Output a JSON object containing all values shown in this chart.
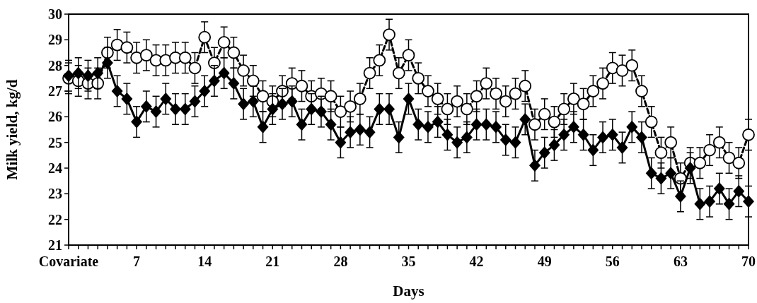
{
  "chart_data": {
    "type": "line",
    "xlabel": "Days",
    "ylabel": "Milk yield, kg/d",
    "x": [
      0,
      1,
      2,
      3,
      4,
      5,
      6,
      7,
      8,
      9,
      10,
      11,
      12,
      13,
      14,
      15,
      16,
      17,
      18,
      19,
      20,
      21,
      22,
      23,
      24,
      25,
      26,
      27,
      28,
      29,
      30,
      31,
      32,
      33,
      34,
      35,
      36,
      37,
      38,
      39,
      40,
      41,
      42,
      43,
      44,
      45,
      46,
      47,
      48,
      49,
      50,
      51,
      52,
      53,
      54,
      55,
      56,
      57,
      58,
      59,
      60,
      61,
      62,
      63,
      64,
      65,
      66,
      67,
      68,
      69,
      70
    ],
    "series": [
      {
        "color": "#000000",
        "marker": "circle",
        "line_style": "dashed",
        "values": [
          27.5,
          27.4,
          27.3,
          27.3,
          28.5,
          28.8,
          28.7,
          28.3,
          28.4,
          28.2,
          28.2,
          28.3,
          28.3,
          27.9,
          29.1,
          28.1,
          28.9,
          28.5,
          27.8,
          27.4,
          26.8,
          26.6,
          27.0,
          27.3,
          27.2,
          26.8,
          26.9,
          26.8,
          26.2,
          26.4,
          26.7,
          27.7,
          28.2,
          29.2,
          27.7,
          28.4,
          27.5,
          27.0,
          26.7,
          26.3,
          26.6,
          26.3,
          26.8,
          27.3,
          26.9,
          26.6,
          26.9,
          27.2,
          25.7,
          26.1,
          25.8,
          26.3,
          26.7,
          26.5,
          27.0,
          27.3,
          27.9,
          27.8,
          28.0,
          27.0,
          25.8,
          24.6,
          25.0,
          23.6,
          24.2,
          24.2,
          24.7,
          25.0,
          24.4,
          24.2,
          25.3
        ],
        "errors": [
          0.6,
          0.6,
          0.6,
          0.6,
          0.6,
          0.6,
          0.6,
          0.6,
          0.6,
          0.6,
          0.6,
          0.6,
          0.6,
          0.6,
          0.6,
          0.6,
          0.6,
          0.6,
          0.6,
          0.6,
          0.6,
          0.6,
          0.6,
          0.6,
          0.6,
          0.6,
          0.6,
          0.6,
          0.6,
          0.6,
          0.6,
          0.6,
          0.6,
          0.6,
          0.6,
          0.6,
          0.6,
          0.6,
          0.6,
          0.6,
          0.6,
          0.6,
          0.6,
          0.6,
          0.6,
          0.6,
          0.6,
          0.6,
          0.6,
          0.6,
          0.6,
          0.6,
          0.6,
          0.6,
          0.6,
          0.6,
          0.6,
          0.6,
          0.6,
          0.6,
          0.6,
          0.6,
          0.6,
          0.6,
          0.6,
          0.6,
          0.6,
          0.6,
          0.6,
          0.6,
          0.6
        ]
      },
      {
        "color": "#000000",
        "marker": "diamond",
        "line_style": "solid",
        "values": [
          27.6,
          27.7,
          27.6,
          27.7,
          28.1,
          27.0,
          26.7,
          25.8,
          26.4,
          26.2,
          26.7,
          26.3,
          26.3,
          26.6,
          27.0,
          27.4,
          27.7,
          27.3,
          26.5,
          26.6,
          25.6,
          26.3,
          26.5,
          26.6,
          25.7,
          26.3,
          26.2,
          25.7,
          25.0,
          25.4,
          25.5,
          25.4,
          26.3,
          26.3,
          25.2,
          26.7,
          25.7,
          25.6,
          25.8,
          25.3,
          25.0,
          25.2,
          25.7,
          25.7,
          25.6,
          25.1,
          25.0,
          25.9,
          24.1,
          24.6,
          24.9,
          25.3,
          25.6,
          25.3,
          24.7,
          25.2,
          25.3,
          24.8,
          25.6,
          25.2,
          23.8,
          23.6,
          23.8,
          22.9,
          24.0,
          22.6,
          22.7,
          23.2,
          22.6,
          23.1,
          22.7
        ],
        "errors": [
          0.6,
          0.6,
          0.6,
          0.6,
          0.6,
          0.6,
          0.6,
          0.6,
          0.6,
          0.6,
          0.6,
          0.6,
          0.6,
          0.6,
          0.6,
          0.6,
          0.6,
          0.6,
          0.6,
          0.6,
          0.6,
          0.6,
          0.6,
          0.6,
          0.6,
          0.6,
          0.6,
          0.6,
          0.6,
          0.6,
          0.6,
          0.6,
          0.6,
          0.6,
          0.6,
          0.6,
          0.6,
          0.6,
          0.6,
          0.6,
          0.6,
          0.6,
          0.6,
          0.6,
          0.6,
          0.6,
          0.6,
          0.6,
          0.6,
          0.6,
          0.6,
          0.6,
          0.6,
          0.6,
          0.6,
          0.6,
          0.6,
          0.6,
          0.6,
          0.6,
          0.6,
          0.6,
          0.6,
          0.6,
          0.6,
          0.6,
          0.6,
          0.6,
          0.6,
          0.6,
          0.6
        ]
      }
    ],
    "xlim": [
      0,
      70
    ],
    "xticks": [
      {
        "value": 0,
        "label": "Covariate"
      },
      {
        "value": 1,
        "label": null
      },
      {
        "value": 2,
        "label": null
      },
      {
        "value": 3,
        "label": null
      },
      {
        "value": 4,
        "label": null
      },
      {
        "value": 5,
        "label": null
      },
      {
        "value": 6,
        "label": null
      },
      7,
      {
        "value": 8,
        "label": null
      },
      {
        "value": 9,
        "label": null
      },
      {
        "value": 10,
        "label": null
      },
      {
        "value": 11,
        "label": null
      },
      {
        "value": 12,
        "label": null
      },
      {
        "value": 13,
        "label": null
      },
      14,
      {
        "value": 15,
        "label": null
      },
      {
        "value": 16,
        "label": null
      },
      {
        "value": 17,
        "label": null
      },
      {
        "value": 18,
        "label": null
      },
      {
        "value": 19,
        "label": null
      },
      {
        "value": 20,
        "label": null
      },
      21,
      {
        "value": 22,
        "label": null
      },
      {
        "value": 23,
        "label": null
      },
      {
        "value": 24,
        "label": null
      },
      {
        "value": 25,
        "label": null
      },
      {
        "value": 26,
        "label": null
      },
      {
        "value": 27,
        "label": null
      },
      28,
      {
        "value": 29,
        "label": null
      },
      {
        "value": 30,
        "label": null
      },
      {
        "value": 31,
        "label": null
      },
      {
        "value": 32,
        "label": null
      },
      {
        "value": 33,
        "label": null
      },
      {
        "value": 34,
        "label": null
      },
      35,
      {
        "value": 36,
        "label": null
      },
      {
        "value": 37,
        "label": null
      },
      {
        "value": 38,
        "label": null
      },
      {
        "value": 39,
        "label": null
      },
      {
        "value": 40,
        "label": null
      },
      {
        "value": 41,
        "label": null
      },
      42,
      {
        "value": 43,
        "label": null
      },
      {
        "value": 44,
        "label": null
      },
      {
        "value": 45,
        "label": null
      },
      {
        "value": 46,
        "label": null
      },
      {
        "value": 47,
        "label": null
      },
      {
        "value": 48,
        "label": null
      },
      49,
      {
        "value": 50,
        "label": null
      },
      {
        "value": 51,
        "label": null
      },
      {
        "value": 52,
        "label": null
      },
      {
        "value": 53,
        "label": null
      },
      {
        "value": 54,
        "label": null
      },
      {
        "value": 55,
        "label": null
      },
      56,
      {
        "value": 57,
        "label": null
      },
      {
        "value": 58,
        "label": null
      },
      {
        "value": 59,
        "label": null
      },
      {
        "value": 60,
        "label": null
      },
      {
        "value": 61,
        "label": null
      },
      {
        "value": 62,
        "label": null
      },
      63,
      {
        "value": 64,
        "label": null
      },
      {
        "value": 65,
        "label": null
      },
      {
        "value": 66,
        "label": null
      },
      {
        "value": 67,
        "label": null
      },
      {
        "value": 68,
        "label": null
      },
      {
        "value": 69,
        "label": null
      },
      70
    ],
    "ylim": [
      21,
      30
    ],
    "yticks": [
      21,
      22,
      23,
      24,
      25,
      26,
      27,
      28,
      29,
      30
    ]
  }
}
